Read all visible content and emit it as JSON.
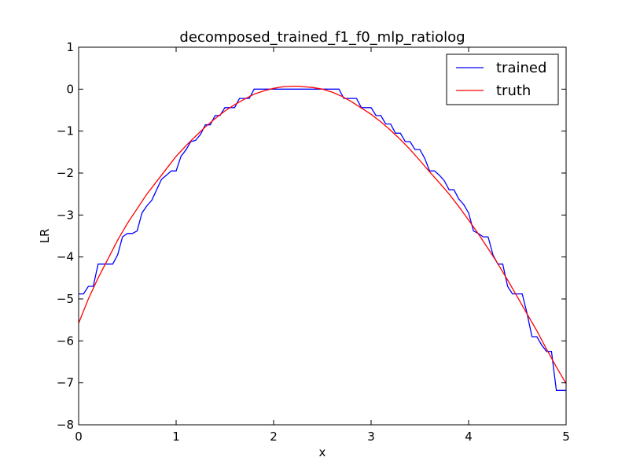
{
  "chart_data": {
    "type": "line",
    "title": "decomposed_trained_f1_f0_mlp_ratiolog",
    "xlabel": "x",
    "ylabel": "LR",
    "xlim": [
      0,
      5
    ],
    "ylim": [
      -8,
      1
    ],
    "xticks": [
      0,
      1,
      2,
      3,
      4,
      5
    ],
    "yticks": [
      1,
      0,
      -1,
      -2,
      -3,
      -4,
      -5,
      -6,
      -7,
      -8
    ],
    "xtick_labels": [
      "0",
      "1",
      "2",
      "3",
      "4",
      "5"
    ],
    "ytick_labels": [
      "1",
      "0",
      "−1",
      "−2",
      "−3",
      "−4",
      "−5",
      "−6",
      "−7",
      "−8"
    ],
    "grid": false,
    "legend_position": "top-right",
    "series": [
      {
        "name": "trained",
        "color": "#0000ff",
        "x": [
          0.0,
          0.05,
          0.1,
          0.15,
          0.2,
          0.25,
          0.3,
          0.35,
          0.4,
          0.45,
          0.5,
          0.55,
          0.6,
          0.65,
          0.7,
          0.75,
          0.8,
          0.85,
          0.9,
          0.95,
          1.0,
          1.05,
          1.1,
          1.15,
          1.2,
          1.25,
          1.3,
          1.35,
          1.4,
          1.45,
          1.5,
          1.55,
          1.6,
          1.65,
          1.7,
          1.75,
          1.8,
          1.85,
          2.0,
          2.2,
          2.4,
          2.6,
          2.67,
          2.72,
          2.8,
          2.85,
          2.9,
          2.95,
          3.0,
          3.05,
          3.1,
          3.15,
          3.2,
          3.25,
          3.3,
          3.35,
          3.4,
          3.45,
          3.5,
          3.55,
          3.6,
          3.65,
          3.7,
          3.75,
          3.8,
          3.85,
          3.9,
          3.95,
          4.0,
          4.05,
          4.1,
          4.15,
          4.2,
          4.25,
          4.3,
          4.35,
          4.4,
          4.45,
          4.5,
          4.55,
          4.6,
          4.65,
          4.7,
          4.75,
          4.8,
          4.85,
          4.9,
          4.95,
          5.0
        ],
        "values": [
          -4.88,
          -4.88,
          -4.7,
          -4.7,
          -4.17,
          -4.17,
          -4.17,
          -4.17,
          -3.95,
          -3.52,
          -3.44,
          -3.44,
          -3.38,
          -2.95,
          -2.78,
          -2.65,
          -2.4,
          -2.15,
          -2.05,
          -1.95,
          -1.95,
          -1.6,
          -1.45,
          -1.25,
          -1.22,
          -1.08,
          -0.85,
          -0.85,
          -0.63,
          -0.63,
          -0.44,
          -0.44,
          -0.44,
          -0.22,
          -0.22,
          -0.22,
          0.0,
          0.0,
          0.0,
          0.0,
          0.0,
          0.0,
          0.0,
          -0.22,
          -0.22,
          -0.22,
          -0.44,
          -0.44,
          -0.44,
          -0.63,
          -0.63,
          -0.83,
          -0.83,
          -1.05,
          -1.05,
          -1.25,
          -1.25,
          -1.44,
          -1.44,
          -1.65,
          -1.95,
          -1.95,
          -2.05,
          -2.18,
          -2.4,
          -2.4,
          -2.62,
          -2.75,
          -2.95,
          -3.38,
          -3.44,
          -3.52,
          -3.52,
          -3.95,
          -4.17,
          -4.17,
          -4.7,
          -4.88,
          -4.88,
          -4.88,
          -5.35,
          -5.9,
          -5.9,
          -6.1,
          -6.25,
          -6.25,
          -7.18,
          -7.18,
          -7.18
        ]
      },
      {
        "name": "truth",
        "color": "#ff0000",
        "x": [
          0.0,
          0.1,
          0.2,
          0.3,
          0.4,
          0.5,
          0.6,
          0.7,
          0.8,
          0.9,
          1.0,
          1.1,
          1.2,
          1.3,
          1.4,
          1.5,
          1.6,
          1.7,
          1.8,
          1.9,
          2.0,
          2.1,
          2.2,
          2.26,
          2.3,
          2.4,
          2.5,
          2.6,
          2.7,
          2.8,
          2.9,
          3.0,
          3.1,
          3.2,
          3.3,
          3.4,
          3.5,
          3.6,
          3.7,
          3.8,
          3.9,
          4.0,
          4.1,
          4.2,
          4.3,
          4.4,
          4.5,
          4.6,
          4.7,
          4.8,
          4.9,
          5.0
        ],
        "values": [
          -5.58,
          -5.0,
          -4.5,
          -4.05,
          -3.6,
          -3.2,
          -2.85,
          -2.5,
          -2.2,
          -1.9,
          -1.6,
          -1.35,
          -1.12,
          -0.9,
          -0.7,
          -0.52,
          -0.37,
          -0.24,
          -0.12,
          -0.04,
          0.02,
          0.06,
          0.07,
          0.07,
          0.06,
          0.04,
          0.0,
          -0.07,
          -0.17,
          -0.3,
          -0.45,
          -0.6,
          -0.78,
          -0.98,
          -1.2,
          -1.44,
          -1.7,
          -1.97,
          -2.23,
          -2.5,
          -2.8,
          -3.12,
          -3.45,
          -3.8,
          -4.16,
          -4.55,
          -4.95,
          -5.36,
          -5.76,
          -6.2,
          -6.62,
          -7.02
        ]
      }
    ]
  }
}
